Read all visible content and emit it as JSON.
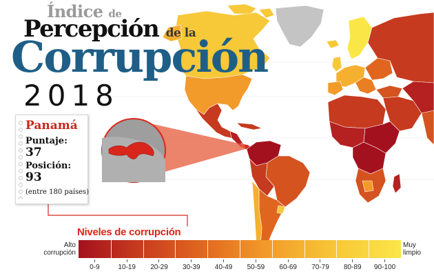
{
  "title": {
    "line1_main": "Índice",
    "line1_small": "de",
    "line2_main": "Percepción",
    "line2_small": "de la",
    "line3": "Corrupción",
    "year": "2018"
  },
  "country_card": {
    "name": "Panamá",
    "score_label": "Puntaje:",
    "score_value": "37",
    "rank_label": "Posición:",
    "rank_value": "93",
    "rank_note": "(entre 180 países)"
  },
  "legend": {
    "title": "Niveles de corrupción",
    "low_end_label": "Alto corrupción",
    "high_end_label": "Muy limpio",
    "ranges": [
      "0-9",
      "10-19",
      "20-29",
      "30-39",
      "40-49",
      "50-59",
      "60-69",
      "70-79",
      "80-89",
      "90-100"
    ],
    "colors": [
      "#a4111e",
      "#b52020",
      "#c63a1f",
      "#d5531e",
      "#e0661f",
      "#ea7e22",
      "#f29a2a",
      "#f5b030",
      "#f7c838",
      "#fbe648"
    ]
  },
  "map": {
    "no_data_color": "#c4c4c4",
    "water_color": "#ffffff",
    "highlight_color": "#d8261c"
  }
}
